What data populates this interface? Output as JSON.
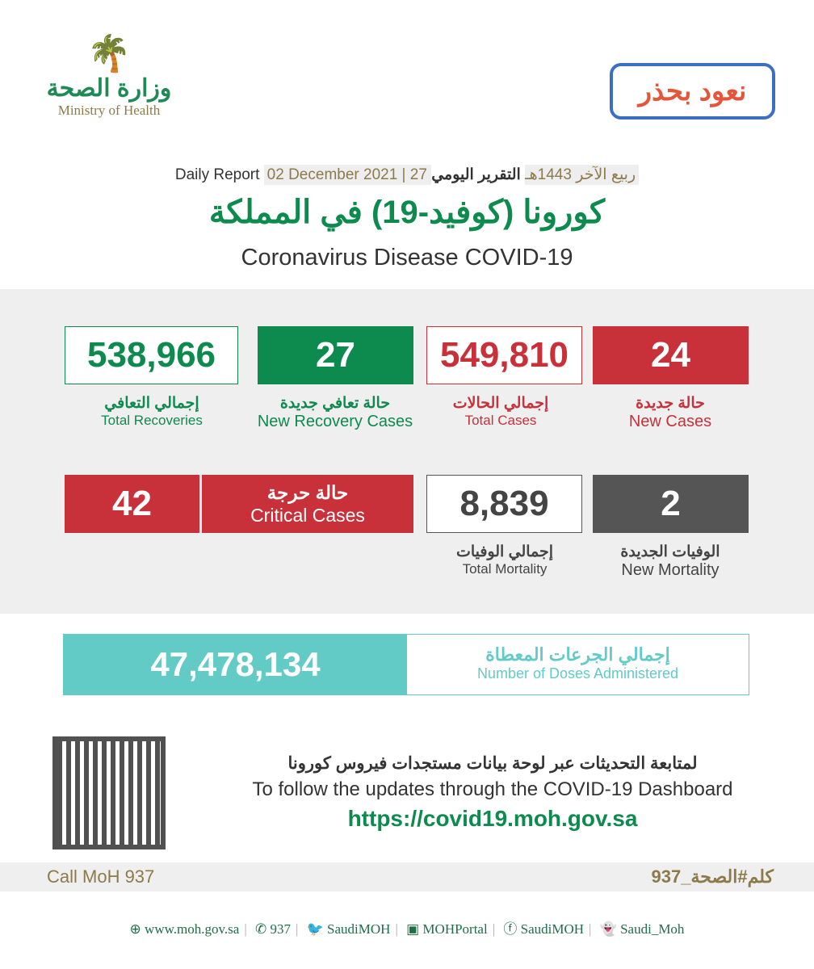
{
  "logo": {
    "ar": "وزارة الصحة",
    "en": "Ministry of Health"
  },
  "campaign": "نعود بحذر",
  "header": {
    "report_ar": "التقرير اليومي",
    "hijri": "27 ربيع الآخر 1443هـ",
    "date": "02 December 2021",
    "report_en": "Daily Report",
    "title_ar": "كورونا (كوفيد-19) في المملكة",
    "title_en": "Coronavirus Disease COVID-19"
  },
  "stats": {
    "total_recoveries": {
      "value": "538,966",
      "ar": "إجمالي التعافي",
      "en": "Total Recoveries"
    },
    "new_recoveries": {
      "value": "27",
      "ar": "حالة تعافي جديدة",
      "en": "New Recovery Cases"
    },
    "total_cases": {
      "value": "549,810",
      "ar": "إجمالي الحالات",
      "en": "Total Cases"
    },
    "new_cases": {
      "value": "24",
      "ar": "حالة جديدة",
      "en": "New Cases"
    },
    "critical": {
      "value": "42",
      "ar": "حالة حرجة",
      "en": "Critical Cases"
    },
    "total_mortality": {
      "value": "8,839",
      "ar": "إجمالي الوفيات",
      "en": "Total Mortality"
    },
    "new_mortality": {
      "value": "2",
      "ar": "الوفيات الجديدة",
      "en": "New Mortality"
    }
  },
  "doses": {
    "value": "47,478,134",
    "ar": "إجمالي الجرعات المعطاة",
    "en": "Number of Doses Administered"
  },
  "follow": {
    "ar": "لمتابعة التحديثات عبر لوحة بيانات مستجدات فيروس كورونا",
    "en": "To follow the updates through the COVID-19 Dashboard",
    "url": "https://covid19.moh.gov.sa"
  },
  "call": {
    "en": "Call MoH 937",
    "ar": "كلم#الصحة_937"
  },
  "footer": [
    "www.moh.gov.sa",
    "937",
    "SaudiMOH",
    "MOHPortal",
    "SaudiMOH",
    "Saudi_Moh"
  ],
  "colors": {
    "green": "#0d8a4e",
    "red": "#c8303a",
    "gray": "#555555",
    "teal": "#62cbc6"
  }
}
